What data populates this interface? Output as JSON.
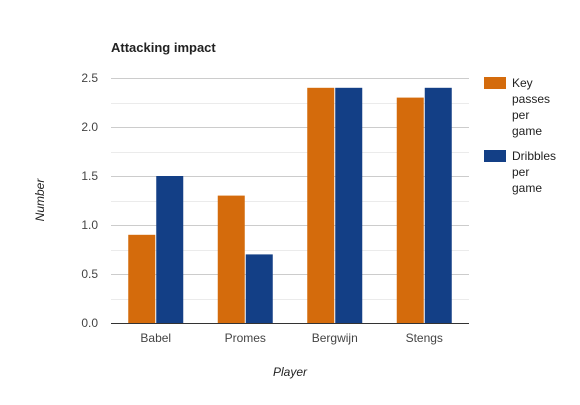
{
  "chart_data": {
    "type": "bar",
    "title": "Attacking impact",
    "xlabel": "Player",
    "ylabel": "Number",
    "categories": [
      "Babel",
      "Promes",
      "Bergwijn",
      "Stengs"
    ],
    "series": [
      {
        "name": "Key passes per game",
        "name_lines": [
          "Key",
          "passes",
          "per",
          "game"
        ],
        "color": "#d46b0c",
        "values": [
          0.9,
          1.3,
          2.4,
          2.3
        ]
      },
      {
        "name": "Dribbles per game",
        "name_lines": [
          "Dribbles",
          "per",
          "game"
        ],
        "color": "#133f86",
        "values": [
          1.5,
          0.7,
          2.4,
          2.4
        ]
      }
    ],
    "ylim": [
      0,
      2.5
    ],
    "yticks": [
      "0.0",
      "0.5",
      "1.0",
      "1.5",
      "2.0",
      "2.5"
    ],
    "grid": true,
    "legend_position": "right"
  }
}
